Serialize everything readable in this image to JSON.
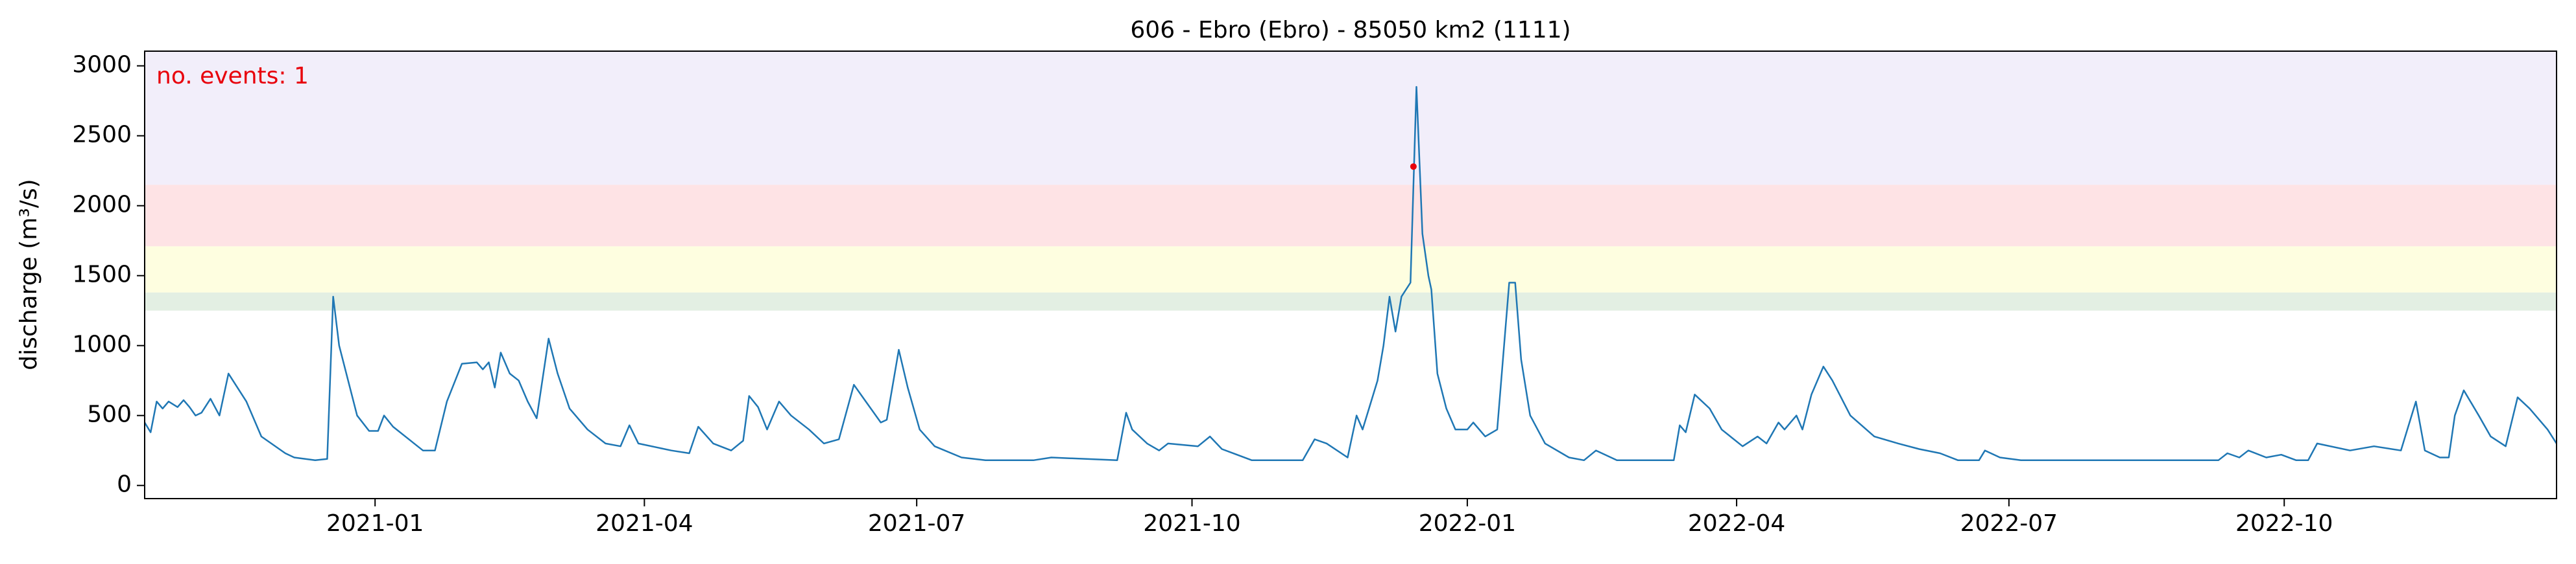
{
  "chart_data": {
    "type": "line",
    "title": "606 - Ebro (Ebro) - 85050 km2 (1111)",
    "ylabel": "discharge (m³/s)",
    "annotation": "no. events: 1",
    "annotation_color": "#e8000b",
    "x": [
      -77,
      -75,
      -73,
      -71,
      -69,
      -66,
      -64,
      -62,
      -60,
      -58,
      -55,
      -52,
      -49,
      -43,
      -38,
      -30,
      -27,
      -20,
      -16,
      -14,
      -12,
      -6,
      -2,
      1,
      3,
      6,
      16,
      20,
      24,
      29,
      34,
      36,
      38,
      40,
      42,
      45,
      48,
      51,
      54,
      58,
      61,
      65,
      71,
      77,
      82,
      85,
      88,
      99,
      105,
      108,
      113,
      119,
      123,
      125,
      128,
      131,
      135,
      139,
      145,
      150,
      155,
      160,
      164,
      169,
      171,
      175,
      178,
      182,
      187,
      196,
      204,
      220,
      226,
      248,
      251,
      253,
      258,
      262,
      265,
      275,
      279,
      283,
      293,
      310,
      314,
      318,
      325,
      328,
      330,
      335,
      337,
      339,
      341,
      343,
      346,
      348,
      350,
      352,
      353,
      355,
      358,
      361,
      365,
      367,
      371,
      375,
      379,
      381,
      383,
      386,
      391,
      399,
      404,
      408,
      415,
      434,
      436,
      438,
      441,
      446,
      450,
      457,
      462,
      465,
      469,
      471,
      475,
      477,
      480,
      484,
      487,
      493,
      501,
      509,
      516,
      523,
      529,
      536,
      538,
      543,
      550,
      616,
      619,
      623,
      626,
      632,
      637,
      642,
      646,
      649,
      660,
      668,
      677,
      682,
      685,
      690,
      693,
      695,
      698,
      703,
      707,
      712,
      716,
      720,
      726,
      729
    ],
    "series": [
      {
        "name": "discharge",
        "color": "#1f77b4",
        "values": [
          450,
          380,
          600,
          550,
          600,
          560,
          610,
          560,
          500,
          520,
          620,
          500,
          800,
          600,
          350,
          230,
          200,
          180,
          190,
          1350,
          1000,
          500,
          390,
          390,
          500,
          420,
          250,
          250,
          600,
          870,
          880,
          830,
          880,
          700,
          950,
          800,
          750,
          600,
          480,
          1050,
          800,
          550,
          400,
          300,
          280,
          430,
          300,
          250,
          230,
          420,
          300,
          250,
          320,
          640,
          560,
          400,
          600,
          500,
          400,
          300,
          330,
          720,
          600,
          450,
          470,
          970,
          700,
          400,
          280,
          200,
          180,
          180,
          200,
          180,
          520,
          400,
          300,
          250,
          300,
          280,
          350,
          260,
          180,
          180,
          330,
          300,
          200,
          500,
          400,
          750,
          1000,
          1350,
          1100,
          1350,
          1450,
          2850,
          1800,
          1500,
          1400,
          800,
          550,
          400,
          400,
          450,
          350,
          400,
          1450,
          1450,
          900,
          500,
          300,
          200,
          180,
          250,
          180,
          180,
          430,
          380,
          650,
          550,
          400,
          280,
          350,
          300,
          450,
          400,
          500,
          400,
          650,
          850,
          750,
          500,
          350,
          300,
          260,
          230,
          180,
          180,
          250,
          200,
          180,
          180,
          230,
          200,
          250,
          200,
          220,
          180,
          180,
          300,
          250,
          280,
          250,
          600,
          250,
          200,
          200,
          500,
          680,
          500,
          350,
          280,
          630,
          550,
          400,
          300
        ]
      }
    ],
    "events": {
      "x": [
        347
      ],
      "values": [
        2280
      ],
      "color": "#e8000b"
    },
    "bands": [
      {
        "from": 1250,
        "to": 1380,
        "color": "#e3efe3"
      },
      {
        "from": 1380,
        "to": 1710,
        "color": "#fefee0"
      },
      {
        "from": 1710,
        "to": 2150,
        "color": "#fee3e5"
      },
      {
        "from": 2150,
        "color": "#f2eefa"
      }
    ],
    "xlim": [
      -77,
      729
    ],
    "xticks": [
      {
        "value": 0,
        "label": "2021-01"
      },
      {
        "value": 90,
        "label": "2021-04"
      },
      {
        "value": 181,
        "label": "2021-07"
      },
      {
        "value": 273,
        "label": "2021-10"
      },
      {
        "value": 365,
        "label": "2022-01"
      },
      {
        "value": 455,
        "label": "2022-04"
      },
      {
        "value": 546,
        "label": "2022-07"
      },
      {
        "value": 638,
        "label": "2022-10"
      }
    ],
    "ylim": [
      -94,
      3105
    ],
    "yticks": [
      0,
      500,
      1000,
      1500,
      2000,
      2500,
      3000
    ]
  }
}
